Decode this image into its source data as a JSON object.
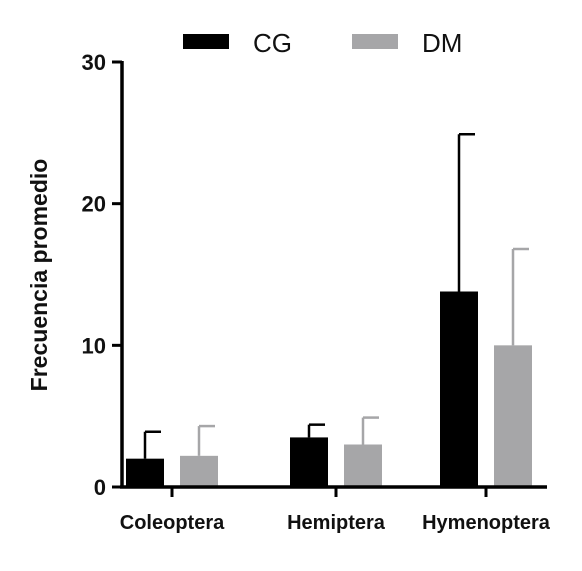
{
  "chart_data": {
    "type": "bar",
    "categories": [
      "Coleoptera",
      "Hemiptera",
      "Hymenoptera"
    ],
    "series": [
      {
        "name": "CG",
        "color": "#000000",
        "values": [
          2.0,
          3.5,
          13.8
        ],
        "error_upper": [
          3.9,
          4.4,
          24.9
        ]
      },
      {
        "name": "DM",
        "color": "#a6a6a8",
        "values": [
          2.2,
          3.0,
          10.0
        ],
        "error_upper": [
          4.3,
          4.9,
          16.8
        ]
      }
    ],
    "ylabel": "Frecuencia promedio",
    "xlabel": "",
    "ylim": [
      0,
      30
    ],
    "yticks": [
      0,
      10,
      20,
      30
    ],
    "grid": false,
    "legend_position": "top"
  }
}
